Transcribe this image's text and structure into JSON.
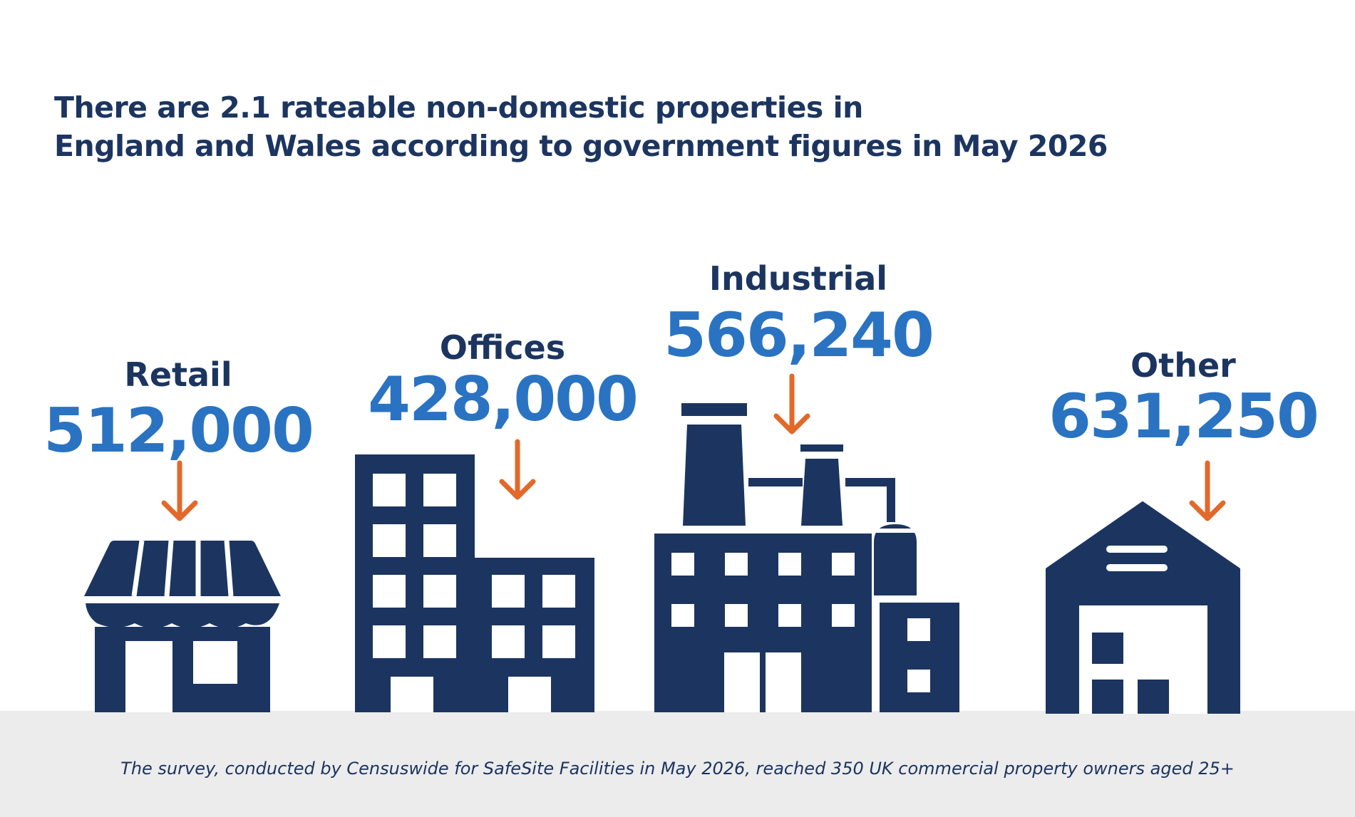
{
  "headline": {
    "line1": "There are 2.1 rateable non-domestic properties in",
    "line2": "England and Wales according to government figures in May 2026"
  },
  "colors": {
    "navy": "#1c3560",
    "blue": "#2a73c2",
    "orange": "#e2692a",
    "ground": "#ececec"
  },
  "categories": [
    {
      "label": "Retail",
      "value": "512,000",
      "icon": "shop-icon"
    },
    {
      "label": "Offices",
      "value": "428,000",
      "icon": "office-building-icon"
    },
    {
      "label": "Industrial",
      "value": "566,240",
      "icon": "factory-icon"
    },
    {
      "label": "Other",
      "value": "631,250",
      "icon": "warehouse-icon"
    }
  ],
  "footnote": "The survey, conducted by Censuswide for SafeSite Facilities in May 2026, reached 350 UK commercial property owners aged 25+"
}
